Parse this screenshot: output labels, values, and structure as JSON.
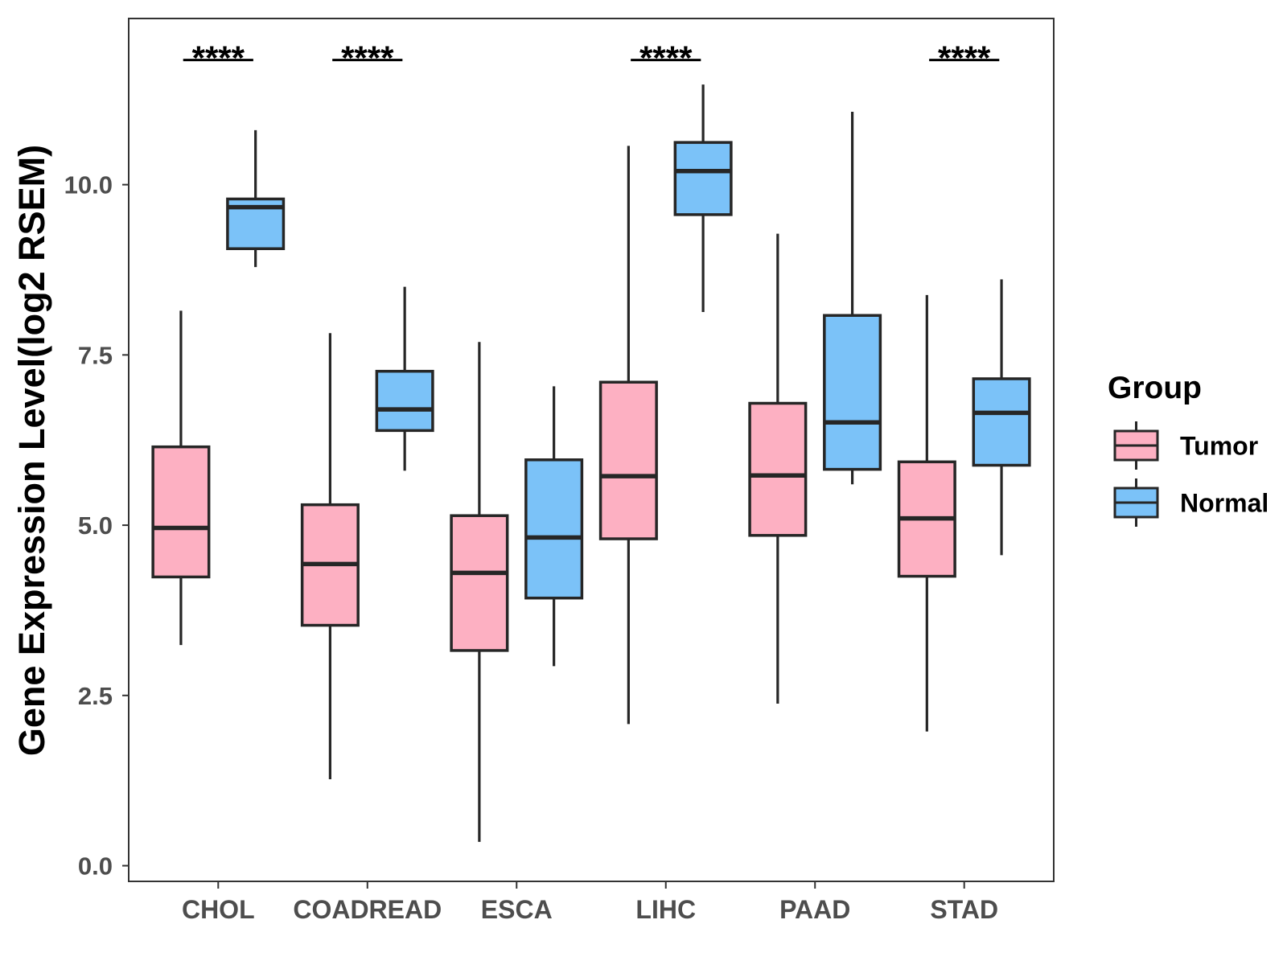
{
  "chart_data": {
    "type": "box",
    "title": "",
    "xlabel": "",
    "ylabel": "Gene Expression Level(log2 RSEM)",
    "categories": [
      "CHOL",
      "COADREAD",
      "ESCA",
      "LIHC",
      "PAAD",
      "STAD"
    ],
    "yticks": [
      0,
      2.5,
      5,
      7.5,
      10
    ],
    "ytick_labels": [
      "0.0",
      "2.5",
      "5.0",
      "7.5",
      "10.0"
    ],
    "ylim": [
      -0.23,
      12.44
    ],
    "grid": false,
    "outline_color": "#262626",
    "legend": {
      "title": "Group",
      "position": "right"
    },
    "series": [
      {
        "name": "Tumor",
        "color": "#FDB0C2",
        "boxes": [
          {
            "min": 3.24,
            "q1": 4.24,
            "median": 4.96,
            "q3": 6.15,
            "max": 8.15
          },
          {
            "min": 1.27,
            "q1": 3.53,
            "median": 4.43,
            "q3": 5.3,
            "max": 7.82
          },
          {
            "min": 0.35,
            "q1": 3.16,
            "median": 4.3,
            "q3": 5.14,
            "max": 7.69
          },
          {
            "min": 2.08,
            "q1": 4.8,
            "median": 5.72,
            "q3": 7.1,
            "max": 10.57
          },
          {
            "min": 2.38,
            "q1": 4.85,
            "median": 5.73,
            "q3": 6.79,
            "max": 9.28
          },
          {
            "min": 1.97,
            "q1": 4.25,
            "median": 5.1,
            "q3": 5.93,
            "max": 8.38
          }
        ]
      },
      {
        "name": "Normal",
        "color": "#7BC2F8",
        "boxes": [
          {
            "min": 8.79,
            "q1": 9.06,
            "median": 9.67,
            "q3": 9.79,
            "max": 10.8
          },
          {
            "min": 5.8,
            "q1": 6.39,
            "median": 6.7,
            "q3": 7.26,
            "max": 8.5
          },
          {
            "min": 2.93,
            "q1": 3.93,
            "median": 4.82,
            "q3": 5.96,
            "max": 7.04
          },
          {
            "min": 8.13,
            "q1": 9.56,
            "median": 10.2,
            "q3": 10.62,
            "max": 11.47
          },
          {
            "min": 5.6,
            "q1": 5.82,
            "median": 6.51,
            "q3": 8.08,
            "max": 11.07
          },
          {
            "min": 4.56,
            "q1": 5.88,
            "median": 6.65,
            "q3": 7.15,
            "max": 8.61
          }
        ]
      }
    ],
    "annotations": [
      {
        "category": "CHOL",
        "label": "****",
        "y": 11.83
      },
      {
        "category": "COADREAD",
        "label": "****",
        "y": 11.83
      },
      {
        "category": "LIHC",
        "label": "****",
        "y": 11.83
      },
      {
        "category": "STAD",
        "label": "****",
        "y": 11.83
      }
    ]
  }
}
